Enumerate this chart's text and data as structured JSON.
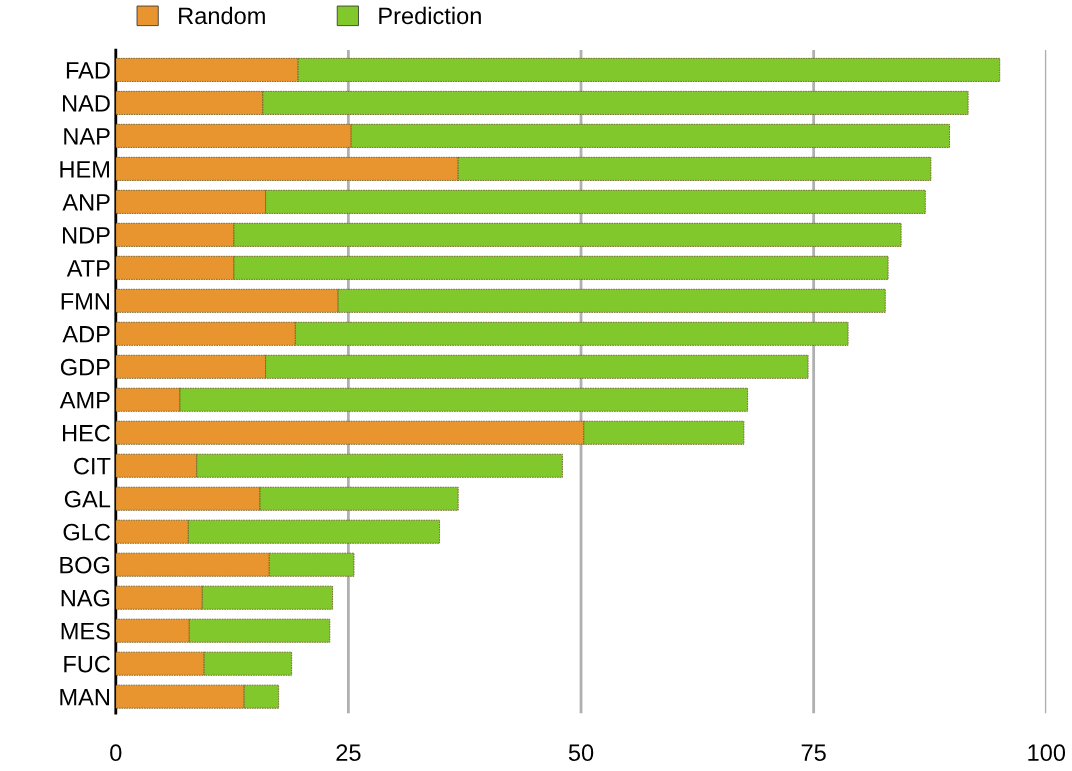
{
  "chart_data": {
    "type": "bar",
    "orientation": "horizontal",
    "stacked": true,
    "categories": [
      "FAD",
      "NAD",
      "NAP",
      "HEM",
      "ANP",
      "NDP",
      "ATP",
      "FMN",
      "ADP",
      "GDP",
      "AMP",
      "HEC",
      "CIT",
      "GAL",
      "GLC",
      "BOG",
      "NAG",
      "MES",
      "FUC",
      "MAN"
    ],
    "series": [
      {
        "name": "Random",
        "color": "#e8952f",
        "values": [
          19.6,
          15.8,
          25.3,
          36.8,
          16.1,
          12.7,
          12.7,
          23.9,
          19.3,
          16.1,
          6.9,
          50.3,
          8.7,
          15.5,
          7.8,
          16.5,
          9.3,
          7.9,
          9.5,
          13.8
        ]
      },
      {
        "name": "Prediction",
        "color": "#80c82c",
        "values": [
          75.4,
          75.8,
          64.3,
          50.8,
          70.9,
          71.7,
          70.3,
          58.8,
          59.4,
          58.3,
          61.0,
          17.2,
          39.3,
          21.3,
          27.0,
          9.1,
          14.0,
          15.1,
          9.4,
          3.7
        ]
      }
    ],
    "xlim": [
      0,
      100
    ],
    "xticks": [
      0,
      25,
      50,
      75,
      100
    ],
    "grid": "x",
    "legend": "top left"
  }
}
